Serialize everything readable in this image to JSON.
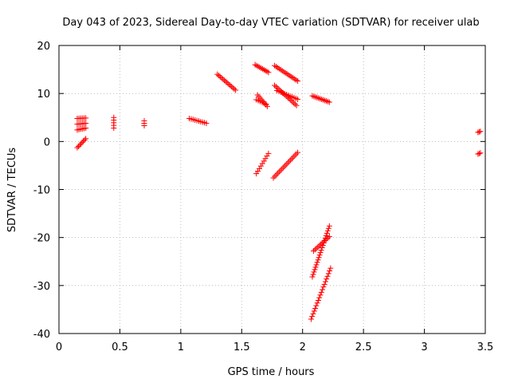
{
  "chart_data": {
    "type": "scatter",
    "title": "Day 043 of 2023, Sidereal Day-to-day VTEC variation (SDTVAR) for receiver ulab",
    "xlabel": "GPS time / hours",
    "ylabel": "SDTVAR / TECUs",
    "xlim": [
      0,
      3.5
    ],
    "ylim": [
      -40,
      20
    ],
    "xticks": [
      0,
      0.5,
      1,
      1.5,
      2,
      2.5,
      3,
      3.5
    ],
    "xtick_labels": [
      "0",
      "0.5",
      "1",
      "1.5",
      "2",
      "2.5",
      "3",
      "3.5"
    ],
    "yticks": [
      -40,
      -30,
      -20,
      -10,
      0,
      10,
      20
    ],
    "ytick_labels": [
      "-40",
      "-30",
      "-20",
      "-10",
      "0",
      "10",
      "20"
    ],
    "grid": true,
    "marker": "+",
    "marker_color": "#ff0000",
    "segments": [
      {
        "x0": 0.15,
        "y0": 4.8,
        "x1": 0.22,
        "y1": 4.9,
        "n": 6
      },
      {
        "x0": 0.15,
        "y0": 3.6,
        "x1": 0.22,
        "y1": 3.8,
        "n": 6
      },
      {
        "x0": 0.15,
        "y0": 2.4,
        "x1": 0.22,
        "y1": 2.8,
        "n": 6
      },
      {
        "x0": 0.15,
        "y0": -1.3,
        "x1": 0.22,
        "y1": 0.6,
        "n": 8
      },
      {
        "x0": 0.45,
        "y0": 2.8,
        "x1": 0.45,
        "y1": 5.0,
        "n": 5
      },
      {
        "x0": 0.7,
        "y0": 3.3,
        "x1": 0.7,
        "y1": 4.3,
        "n": 3
      },
      {
        "x0": 1.07,
        "y0": 4.8,
        "x1": 1.21,
        "y1": 3.8,
        "n": 10
      },
      {
        "x0": 1.3,
        "y0": 14.0,
        "x1": 1.45,
        "y1": 10.7,
        "n": 14
      },
      {
        "x0": 1.61,
        "y0": 16.0,
        "x1": 1.72,
        "y1": 14.4,
        "n": 10
      },
      {
        "x0": 1.77,
        "y0": 15.8,
        "x1": 1.96,
        "y1": 12.6,
        "n": 16
      },
      {
        "x0": 1.63,
        "y0": 9.7,
        "x1": 1.71,
        "y1": 7.3,
        "n": 8
      },
      {
        "x0": 1.77,
        "y0": 11.7,
        "x1": 1.95,
        "y1": 7.5,
        "n": 16
      },
      {
        "x0": 1.79,
        "y0": 10.6,
        "x1": 1.96,
        "y1": 8.8,
        "n": 12
      },
      {
        "x0": 1.62,
        "y0": 8.7,
        "x1": 1.7,
        "y1": 7.8,
        "n": 6
      },
      {
        "x0": 2.08,
        "y0": 9.5,
        "x1": 2.22,
        "y1": 8.2,
        "n": 12
      },
      {
        "x0": 1.62,
        "y0": -6.7,
        "x1": 1.72,
        "y1": -2.5,
        "n": 9
      },
      {
        "x0": 1.76,
        "y0": -7.6,
        "x1": 1.96,
        "y1": -2.3,
        "n": 18
      },
      {
        "x0": 2.08,
        "y0": -28.2,
        "x1": 2.22,
        "y1": -17.6,
        "n": 22
      },
      {
        "x0": 2.09,
        "y0": -22.8,
        "x1": 2.22,
        "y1": -19.8,
        "n": 12
      },
      {
        "x0": 2.07,
        "y0": -37.0,
        "x1": 2.23,
        "y1": -26.4,
        "n": 20
      },
      {
        "x0": 3.44,
        "y0": 1.9,
        "x1": 3.46,
        "y1": 2.1,
        "n": 3
      },
      {
        "x0": 3.44,
        "y0": -2.6,
        "x1": 3.46,
        "y1": -2.4,
        "n": 3
      }
    ]
  }
}
